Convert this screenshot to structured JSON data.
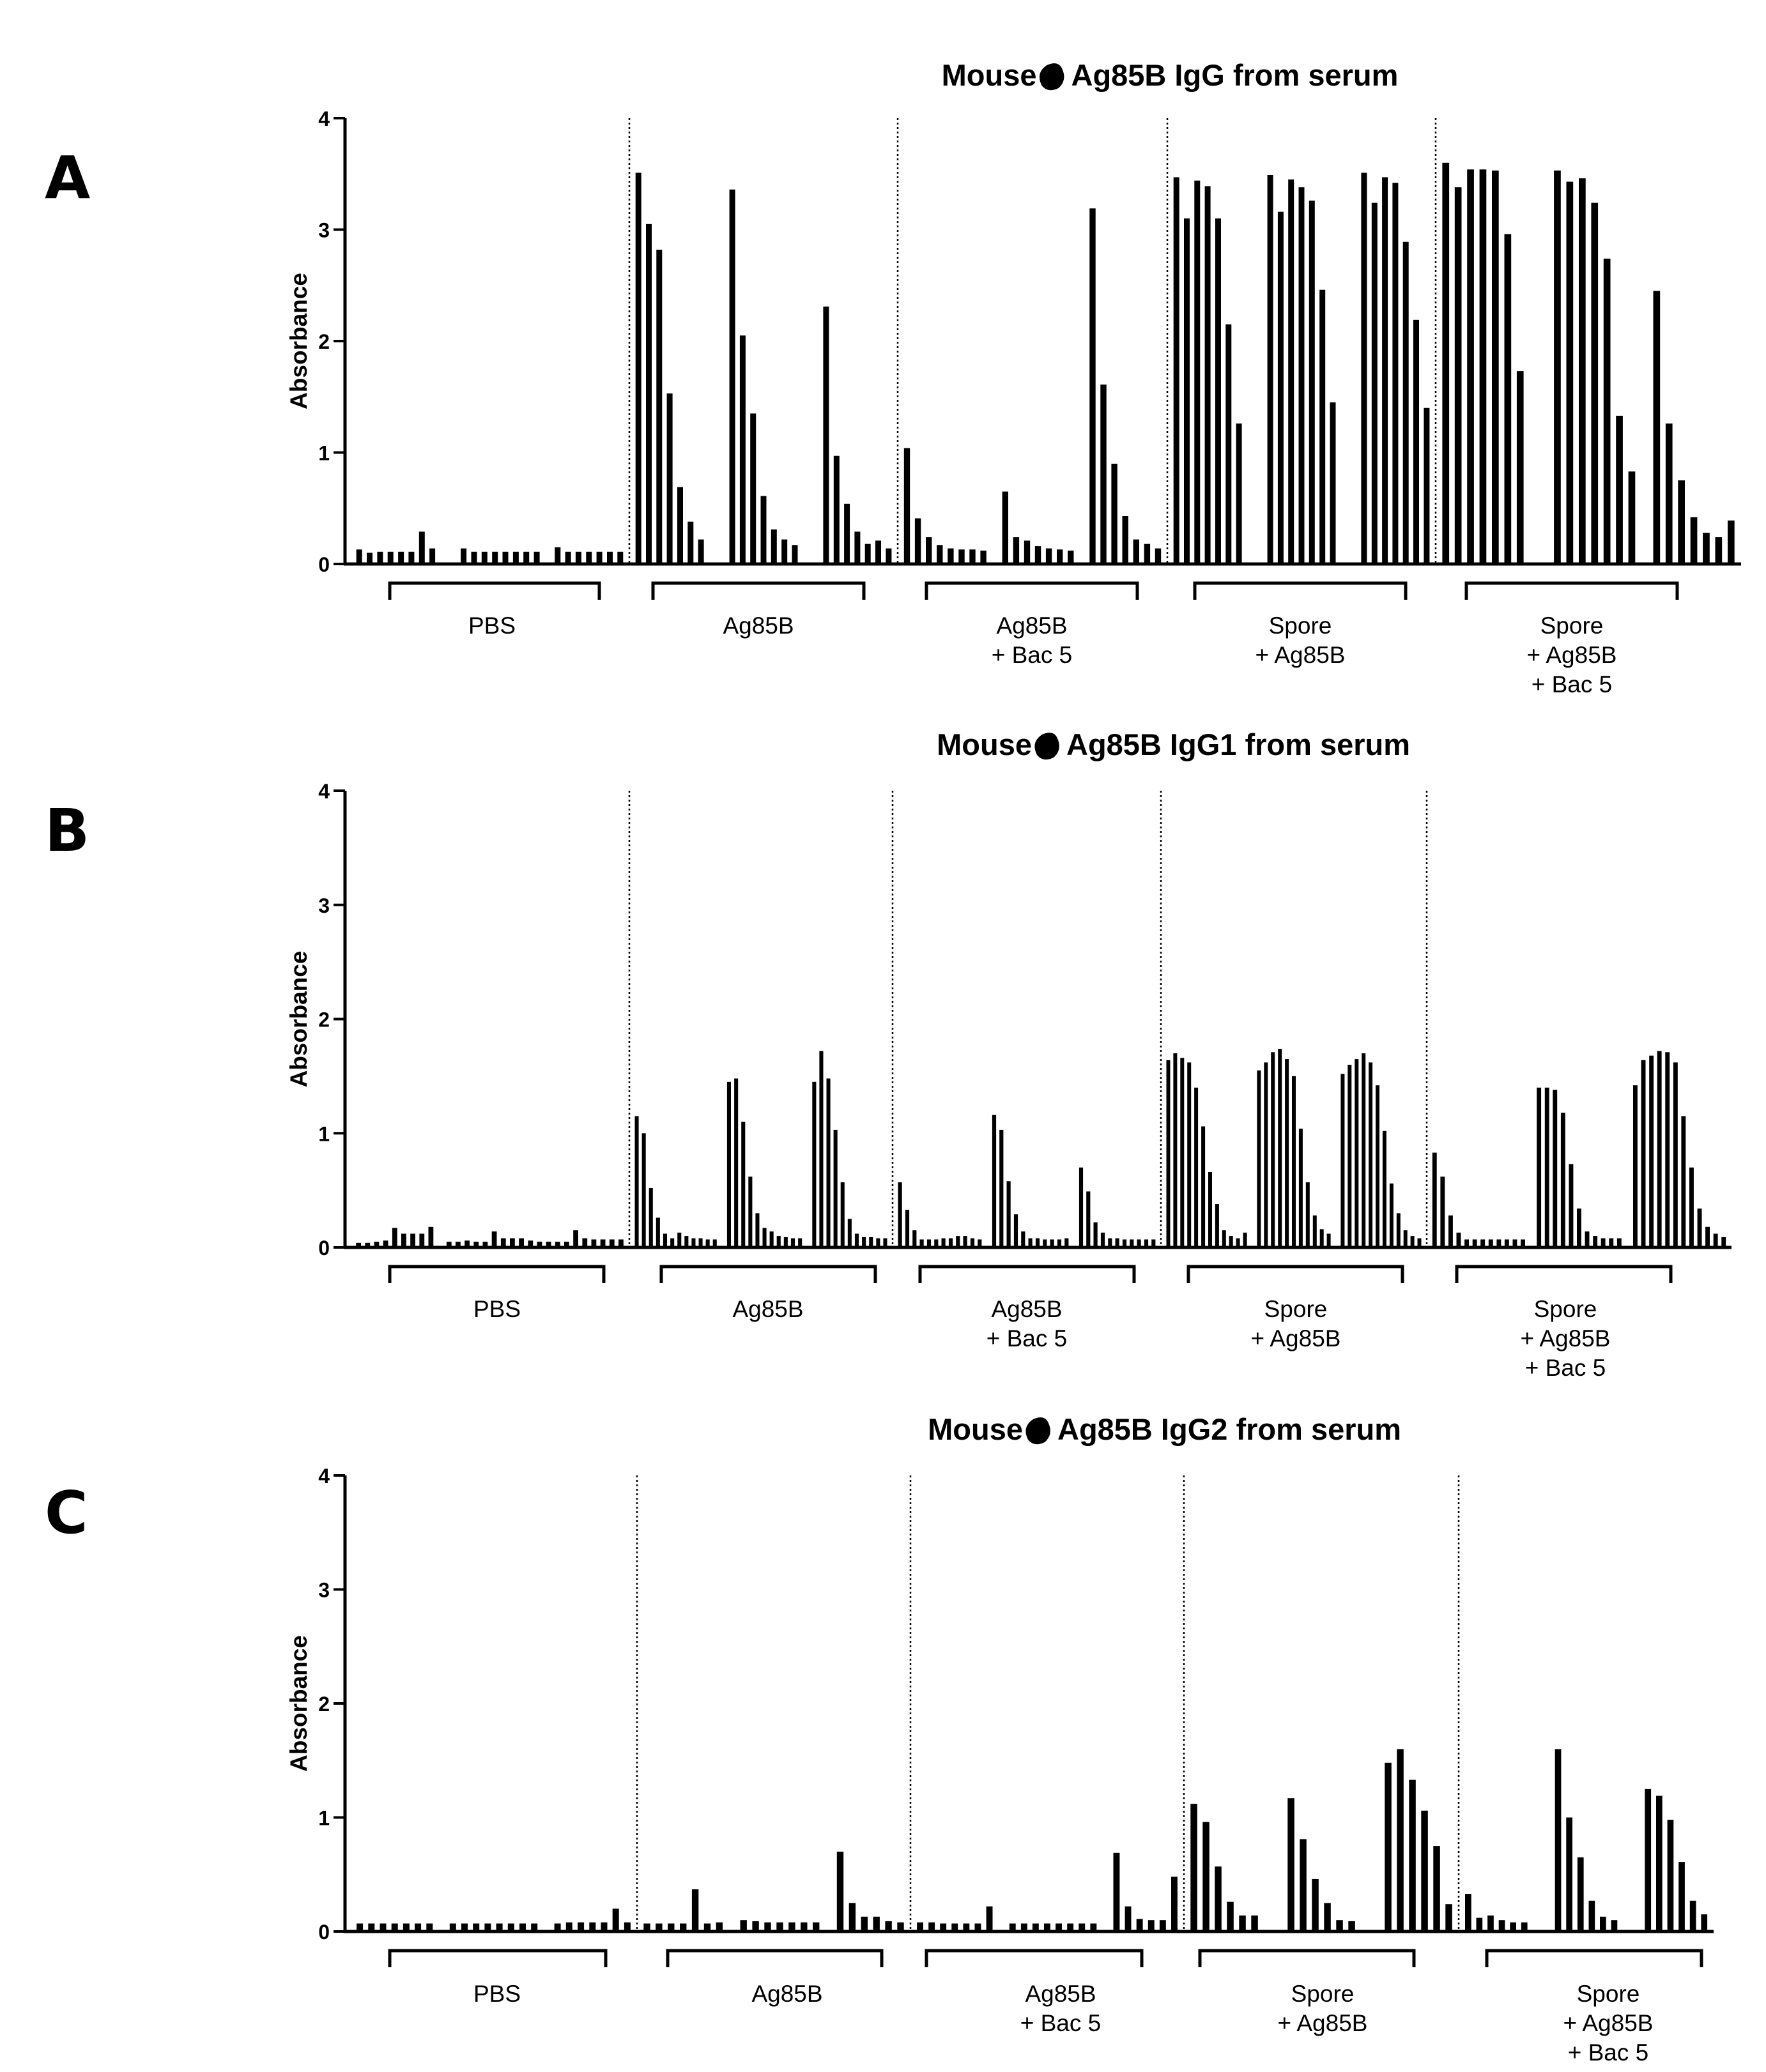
{
  "chart_data": [
    {
      "letter": "A",
      "type": "bar",
      "title_prefix": "Mouse",
      "title_suffix": "Ag85B IgG from serum",
      "ylabel": "Absorbance",
      "ylim": [
        0,
        4
      ],
      "yticks": [
        "0",
        "1",
        "2",
        "3",
        "4"
      ],
      "groups": [
        {
          "label": [
            "PBS"
          ],
          "values": [
            0.13,
            0.1,
            0.11,
            0.11,
            0.11,
            0.11,
            0.29,
            0.14,
            0,
            0,
            0.14,
            0.11,
            0.11,
            0.11,
            0.11,
            0.11,
            0.11,
            0.11,
            0,
            0.15,
            0.11,
            0.11,
            0.11,
            0.11,
            0.11,
            0.11
          ]
        },
        {
          "label": [
            "Ag85B"
          ],
          "values": [
            3.51,
            3.05,
            2.82,
            1.53,
            0.69,
            0.38,
            0.22,
            0,
            0,
            3.36,
            2.05,
            1.35,
            0.61,
            0.31,
            0.22,
            0.17,
            0,
            0,
            2.31,
            0.97,
            0.54,
            0.29,
            0.18,
            0.21,
            0.14
          ]
        },
        {
          "label": [
            "Ag85B",
            "+ Bac 5"
          ],
          "values": [
            1.04,
            0.41,
            0.24,
            0.17,
            0.14,
            0.13,
            0.13,
            0.12,
            0,
            0.65,
            0.24,
            0.21,
            0.16,
            0.14,
            0.13,
            0.12,
            0,
            3.19,
            1.61,
            0.9,
            0.43,
            0.22,
            0.18,
            0.14
          ]
        },
        {
          "label": [
            "Spore",
            "+ Ag85B"
          ],
          "values": [
            3.47,
            3.1,
            3.44,
            3.39,
            3.1,
            2.15,
            1.26,
            0,
            0,
            3.49,
            3.16,
            3.45,
            3.38,
            3.26,
            2.46,
            1.45,
            0,
            0,
            3.51,
            3.24,
            3.47,
            3.42,
            2.89,
            2.19,
            1.4
          ]
        },
        {
          "label": [
            "Spore",
            "+ Ag85B",
            "+ Bac 5"
          ],
          "values": [
            3.6,
            3.38,
            3.54,
            3.54,
            3.53,
            2.96,
            1.73,
            0,
            0,
            3.53,
            3.43,
            3.46,
            3.24,
            2.74,
            1.33,
            0.83,
            0,
            2.45,
            1.26,
            0.75,
            0.42,
            0.28,
            0.24,
            0.39
          ]
        }
      ]
    },
    {
      "letter": "B",
      "type": "bar",
      "title_prefix": "Mouse",
      "title_suffix": "Ag85B IgG1 from serum",
      "ylabel": "Absorbance",
      "ylim": [
        0,
        4
      ],
      "yticks": [
        "0",
        "1",
        "2",
        "3",
        "4"
      ],
      "groups": [
        {
          "label": [
            "PBS"
          ],
          "values": [
            0.04,
            0.04,
            0.05,
            0.06,
            0.17,
            0.12,
            0.12,
            0.12,
            0.18,
            0,
            0.05,
            0.05,
            0.06,
            0.05,
            0.05,
            0.14,
            0.08,
            0.08,
            0.08,
            0.06,
            0.05,
            0.05,
            0.05,
            0.05,
            0.15,
            0.08,
            0.07,
            0.07,
            0.07,
            0.07
          ]
        },
        {
          "label": [
            "Ag85B"
          ],
          "values": [
            1.15,
            1.0,
            0.52,
            0.26,
            0.12,
            0.08,
            0.13,
            0.1,
            0.08,
            0.08,
            0.07,
            0.07,
            0,
            1.45,
            1.48,
            1.1,
            0.62,
            0.3,
            0.17,
            0.14,
            0.1,
            0.09,
            0.08,
            0.08,
            0,
            1.45,
            1.72,
            1.48,
            1.03,
            0.57,
            0.25,
            0.12,
            0.09,
            0.09,
            0.08,
            0.08
          ]
        },
        {
          "label": [
            "Ag85B",
            "+ Bac 5"
          ],
          "values": [
            0.57,
            0.33,
            0.15,
            0.07,
            0.07,
            0.07,
            0.08,
            0.08,
            0.1,
            0.1,
            0.08,
            0.07,
            0,
            1.16,
            1.03,
            0.58,
            0.29,
            0.14,
            0.08,
            0.08,
            0.07,
            0.07,
            0.07,
            0.08,
            0,
            0.7,
            0.49,
            0.22,
            0.13,
            0.08,
            0.08,
            0.07,
            0.07,
            0.07,
            0.07,
            0.07
          ]
        },
        {
          "label": [
            "Spore",
            "+ Ag85B"
          ],
          "values": [
            1.64,
            1.7,
            1.66,
            1.62,
            1.4,
            1.06,
            0.66,
            0.38,
            0.15,
            0.1,
            0.08,
            0.13,
            0,
            1.55,
            1.62,
            1.71,
            1.74,
            1.65,
            1.5,
            1.04,
            0.57,
            0.28,
            0.16,
            0.12,
            0,
            1.52,
            1.6,
            1.65,
            1.7,
            1.62,
            1.42,
            1.02,
            0.56,
            0.3,
            0.15,
            0.1,
            0.08
          ]
        },
        {
          "label": [
            "Spore",
            "+ Ag85B",
            "+ Bac 5"
          ],
          "values": [
            0.83,
            0.62,
            0.28,
            0.13,
            0.07,
            0.07,
            0.07,
            0.07,
            0.07,
            0.07,
            0.07,
            0.07,
            0,
            1.4,
            1.4,
            1.38,
            1.18,
            0.73,
            0.34,
            0.14,
            0.1,
            0.08,
            0.08,
            0.08,
            0,
            1.42,
            1.64,
            1.68,
            1.72,
            1.71,
            1.62,
            1.15,
            0.7,
            0.34,
            0.18,
            0.12,
            0.09
          ]
        }
      ]
    },
    {
      "letter": "C",
      "type": "bar",
      "title_prefix": "Mouse",
      "title_suffix": "Ag85B IgG2 from serum",
      "ylabel": "Absorbance",
      "ylim": [
        0,
        4
      ],
      "yticks": [
        "0",
        "1",
        "2",
        "3",
        "4"
      ],
      "groups": [
        {
          "label": [
            "PBS"
          ],
          "values": [
            0.07,
            0.07,
            0.07,
            0.07,
            0.07,
            0.07,
            0.07,
            0,
            0.07,
            0.07,
            0.07,
            0.07,
            0.07,
            0.07,
            0.07,
            0.07,
            0,
            0.07,
            0.08,
            0.08,
            0.08,
            0.08,
            0.2,
            0.08
          ]
        },
        {
          "label": [
            "Ag85B"
          ],
          "values": [
            0.07,
            0.07,
            0.07,
            0.07,
            0.37,
            0.07,
            0.08,
            0,
            0.1,
            0.09,
            0.08,
            0.08,
            0.08,
            0.08,
            0.08,
            0,
            0.7,
            0.25,
            0.13,
            0.13,
            0.09,
            0.08
          ]
        },
        {
          "label": [
            "Ag85B",
            "+ Bac 5"
          ],
          "values": [
            0.08,
            0.08,
            0.07,
            0.07,
            0.07,
            0.07,
            0.22,
            0,
            0.07,
            0.07,
            0.07,
            0.07,
            0.07,
            0.07,
            0.07,
            0.07,
            0,
            0.69,
            0.22,
            0.11,
            0.1,
            0.1,
            0.48
          ]
        },
        {
          "label": [
            "Spore",
            "+ Ag85B"
          ],
          "values": [
            1.12,
            0.96,
            0.57,
            0.26,
            0.14,
            0.14,
            0,
            0,
            1.17,
            0.81,
            0.46,
            0.25,
            0.1,
            0.09,
            0,
            0,
            1.48,
            1.6,
            1.33,
            1.06,
            0.75,
            0.24
          ]
        },
        {
          "label": [
            "Spore",
            "+ Ag85B",
            "+ Bac 5"
          ],
          "values": [
            0.33,
            0.12,
            0.14,
            0.1,
            0.08,
            0.08,
            0,
            0,
            1.6,
            1.0,
            0.65,
            0.27,
            0.13,
            0.1,
            0,
            0,
            1.25,
            1.19,
            0.98,
            0.61,
            0.27,
            0.15
          ]
        }
      ]
    }
  ]
}
